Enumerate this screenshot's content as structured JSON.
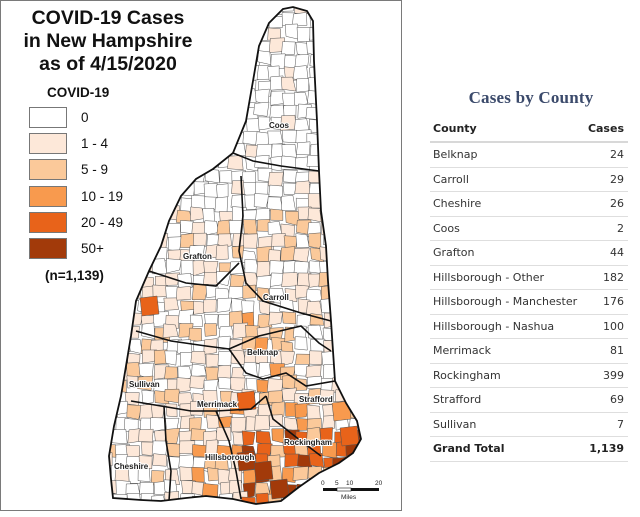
{
  "map": {
    "title_lines": [
      "COVID-19 Cases",
      "in New Hampshire",
      "as of 4/15/2020"
    ],
    "legend": {
      "title": "COVID-19",
      "bins": [
        {
          "label": "0",
          "color": "#ffffff"
        },
        {
          "label": "1 - 4",
          "color": "#fde8d9"
        },
        {
          "label": "5 - 9",
          "color": "#fbc99a"
        },
        {
          "label": "10 - 19",
          "color": "#f89a4e"
        },
        {
          "label": "20 - 49",
          "color": "#e8631a"
        },
        {
          "label": "50+",
          "color": "#a23a0a"
        }
      ],
      "total_note": "(n=1,139)"
    },
    "county_labels": [
      "Coos",
      "Grafton",
      "Carroll",
      "Belknap",
      "Sullivan",
      "Merrimack",
      "Strafford",
      "Rockingham",
      "Cheshire",
      "Hillsborough"
    ],
    "scale_bar": {
      "ticks": [
        "0",
        "5",
        "10",
        "20"
      ],
      "unit": "Miles"
    }
  },
  "table": {
    "heading": "Cases by County",
    "columns": [
      "County",
      "Cases"
    ],
    "rows": [
      {
        "county": "Belknap",
        "cases": "24"
      },
      {
        "county": "Carroll",
        "cases": "29"
      },
      {
        "county": "Cheshire",
        "cases": "26"
      },
      {
        "county": "Coos",
        "cases": "2"
      },
      {
        "county": "Grafton",
        "cases": "44"
      },
      {
        "county": "Hillsborough - Other",
        "cases": "182"
      },
      {
        "county": "Hillsborough - Manchester",
        "cases": "176"
      },
      {
        "county": "Hillsborough - Nashua",
        "cases": "100"
      },
      {
        "county": "Merrimack",
        "cases": "81"
      },
      {
        "county": "Rockingham",
        "cases": "399"
      },
      {
        "county": "Strafford",
        "cases": "69"
      },
      {
        "county": "Sullivan",
        "cases": "7"
      }
    ],
    "total": {
      "label": "Grand Total",
      "cases": "1,139"
    }
  }
}
